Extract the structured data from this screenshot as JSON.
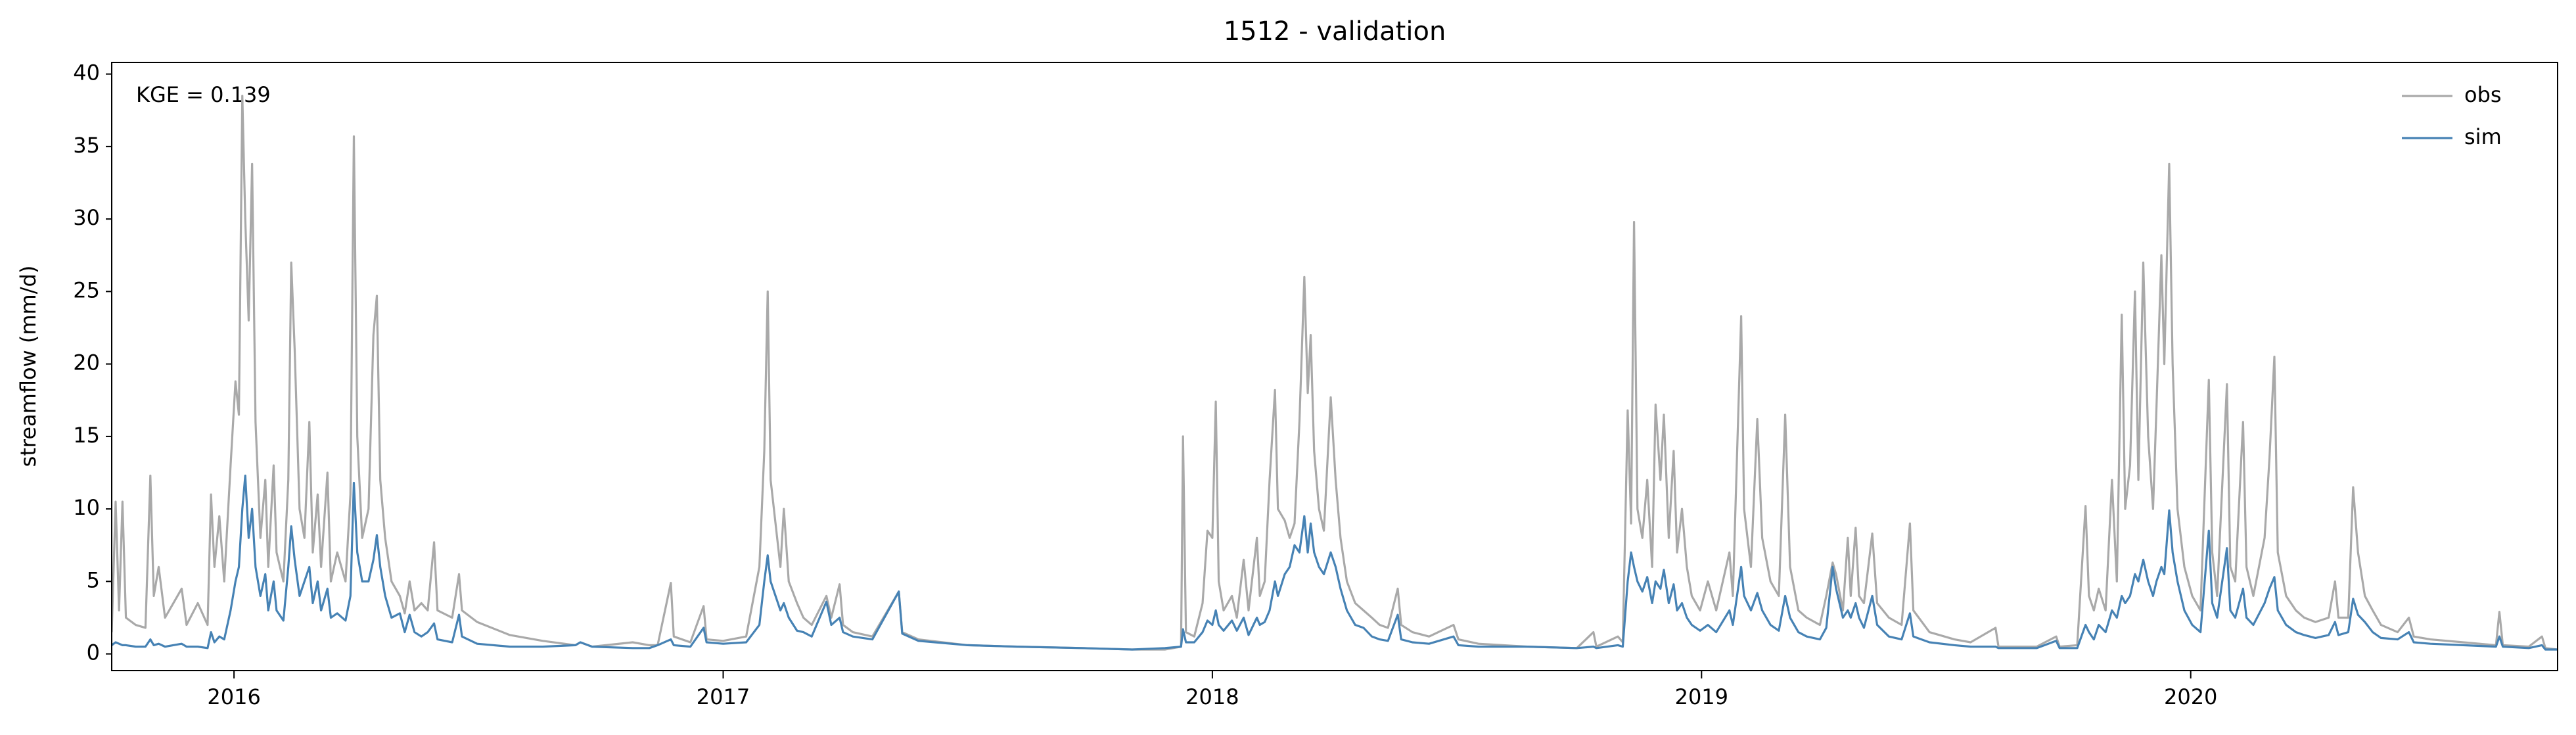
{
  "chart_data": {
    "type": "line",
    "title": "1512 - validation",
    "ylabel": "streamflow (mm/d)",
    "annotation": "KGE = 0.139",
    "legend": "upper right",
    "grid": false,
    "xlim": [
      2015.75,
      2020.75
    ],
    "xticks": [
      2016,
      2017,
      2018,
      2019,
      2020
    ],
    "ylim": [
      -1.15,
      40.8
    ],
    "yticks": [
      0,
      5,
      10,
      15,
      20,
      25,
      30,
      35,
      40
    ],
    "x": [
      2015.75,
      2015.758,
      2015.765,
      2015.772,
      2015.779,
      2015.799,
      2015.819,
      2015.829,
      2015.836,
      2015.846,
      2015.859,
      2015.893,
      2015.903,
      2015.926,
      2015.946,
      2015.953,
      2015.96,
      2015.97,
      2015.98,
      2015.993,
      2016.003,
      2016.01,
      2016.017,
      2016.023,
      2016.03,
      2016.037,
      2016.044,
      2016.054,
      2016.064,
      2016.07,
      2016.081,
      2016.087,
      2016.101,
      2016.111,
      2016.117,
      2016.124,
      2016.134,
      2016.144,
      2016.154,
      2016.161,
      2016.171,
      2016.178,
      2016.191,
      2016.198,
      2016.211,
      2016.228,
      2016.238,
      2016.245,
      2016.252,
      2016.262,
      2016.275,
      2016.285,
      2016.292,
      2016.299,
      2016.309,
      2016.322,
      2016.339,
      2016.349,
      2016.359,
      2016.369,
      2016.383,
      2016.396,
      2016.409,
      2016.416,
      2016.446,
      2016.46,
      2016.466,
      2016.497,
      2016.564,
      2016.631,
      2016.698,
      2016.708,
      2016.732,
      2016.815,
      2016.849,
      2016.866,
      2016.893,
      2016.899,
      2016.933,
      2016.96,
      2016.966,
      2017,
      2017.047,
      2017.074,
      2017.084,
      2017.091,
      2017.097,
      2017.107,
      2017.117,
      2017.124,
      2017.134,
      2017.151,
      2017.164,
      2017.181,
      2017.211,
      2017.221,
      2017.238,
      2017.245,
      2017.265,
      2017.305,
      2017.359,
      2017.366,
      2017.399,
      2017.5,
      2017.601,
      2017.735,
      2017.836,
      2017.903,
      2017.936,
      2017.94,
      2017.946,
      2017.963,
      2017.98,
      2017.99,
      2018,
      2018.007,
      2018.013,
      2018.023,
      2018.04,
      2018.05,
      2018.064,
      2018.074,
      2018.091,
      2018.097,
      2018.107,
      2018.117,
      2018.128,
      2018.134,
      2018.148,
      2018.158,
      2018.168,
      2018.178,
      2018.188,
      2018.195,
      2018.201,
      2018.208,
      2018.218,
      2018.228,
      2018.242,
      2018.252,
      2018.262,
      2018.275,
      2018.292,
      2018.309,
      2018.326,
      2018.342,
      2018.359,
      2018.379,
      2018.386,
      2018.409,
      2018.443,
      2018.493,
      2018.503,
      2018.544,
      2018.644,
      2018.745,
      2018.779,
      2018.785,
      2018.829,
      2018.839,
      2018.849,
      2018.856,
      2018.862,
      2018.869,
      2018.879,
      2018.889,
      2018.899,
      2018.906,
      2018.916,
      2018.923,
      2018.933,
      2018.943,
      2018.95,
      2018.96,
      2018.97,
      2018.98,
      2018.997,
      2019.013,
      2019.03,
      2019.057,
      2019.064,
      2019.081,
      2019.087,
      2019.101,
      2019.114,
      2019.124,
      2019.141,
      2019.158,
      2019.171,
      2019.181,
      2019.198,
      2019.215,
      2019.242,
      2019.255,
      2019.268,
      2019.275,
      2019.289,
      2019.299,
      2019.305,
      2019.315,
      2019.322,
      2019.332,
      2019.349,
      2019.359,
      2019.383,
      2019.409,
      2019.426,
      2019.433,
      2019.466,
      2019.517,
      2019.55,
      2019.601,
      2019.607,
      2019.685,
      2019.725,
      2019.732,
      2019.768,
      2019.785,
      2019.792,
      2019.802,
      2019.812,
      2019.826,
      2019.839,
      2019.849,
      2019.859,
      2019.866,
      2019.876,
      2019.886,
      2019.893,
      2019.903,
      2019.913,
      2019.923,
      2019.93,
      2019.94,
      2019.946,
      2019.956,
      2019.963,
      2019.973,
      2019.987,
      2020.003,
      2020.02,
      2020.037,
      2020.044,
      2020.054,
      2020.074,
      2020.081,
      2020.091,
      2020.107,
      2020.114,
      2020.128,
      2020.151,
      2020.161,
      2020.171,
      2020.178,
      2020.195,
      2020.215,
      2020.232,
      2020.255,
      2020.282,
      2020.295,
      2020.302,
      2020.322,
      2020.332,
      2020.342,
      2020.356,
      2020.372,
      2020.389,
      2020.423,
      2020.446,
      2020.456,
      2020.49,
      2020.557,
      2020.624,
      2020.631,
      2020.638,
      2020.691,
      2020.718,
      2020.725,
      2020.75
    ],
    "series": [
      {
        "name": "obs",
        "color": "#a9a9a9",
        "values": [
          1.5,
          10.5,
          3,
          10.5,
          2.5,
          2,
          1.8,
          12.3,
          4,
          6,
          2.5,
          4.5,
          2,
          3.5,
          2,
          11,
          6,
          9.5,
          5,
          13,
          18.8,
          16.5,
          38.5,
          30,
          23,
          33.8,
          16,
          8,
          12,
          6,
          13,
          7,
          5,
          12,
          27,
          21,
          10,
          8,
          16,
          7,
          11,
          6,
          12.5,
          5,
          7,
          5,
          11,
          35.7,
          15,
          8,
          10,
          22,
          24.7,
          12,
          8,
          5,
          4,
          2.8,
          5,
          3,
          3.5,
          3,
          7.7,
          3,
          2.5,
          5.5,
          3,
          2.2,
          1.3,
          0.9,
          0.6,
          0.8,
          0.5,
          0.8,
          0.6,
          0.6,
          4.9,
          1.2,
          0.8,
          3.3,
          1.0,
          0.9,
          1.2,
          6,
          14,
          25,
          12,
          9,
          6,
          10,
          5,
          3.5,
          2.5,
          2,
          4,
          2.5,
          4.8,
          2,
          1.5,
          1.2,
          4.3,
          1.5,
          1.0,
          0.6,
          0.5,
          0.4,
          0.3,
          0.3,
          0.5,
          15,
          1.5,
          1.2,
          3.5,
          8.5,
          8,
          17.4,
          5,
          3,
          4,
          2.5,
          6.5,
          3,
          8,
          4,
          5,
          12,
          18.2,
          10,
          9.2,
          8,
          9,
          16,
          26,
          18,
          22,
          14,
          10,
          8.5,
          17.7,
          12,
          8,
          5,
          3.5,
          3,
          2.5,
          2,
          1.8,
          4.5,
          2,
          1.5,
          1.2,
          2,
          1,
          0.7,
          0.5,
          0.4,
          1.5,
          0.5,
          1.2,
          0.8,
          16.8,
          9,
          29.8,
          10,
          8,
          12,
          6,
          17.2,
          12,
          16.5,
          8,
          14,
          7,
          10,
          6,
          4,
          3,
          5,
          3,
          7,
          4,
          23.3,
          10,
          6,
          16.2,
          8,
          5,
          4,
          16.5,
          6,
          3,
          2.5,
          2,
          4,
          6.3,
          5.5,
          3,
          8,
          4,
          8.7,
          4,
          3.5,
          8.3,
          3.5,
          2.5,
          2,
          9,
          3,
          1.5,
          1.0,
          0.8,
          1.8,
          0.5,
          0.5,
          1.2,
          0.5,
          0.6,
          10.2,
          4,
          3,
          4.5,
          3,
          12,
          5,
          23.4,
          10,
          13,
          25,
          12,
          27,
          15,
          10,
          17,
          27.5,
          20,
          33.8,
          20,
          10,
          6,
          4,
          3,
          18.9,
          7,
          4,
          18.6,
          6,
          5,
          16,
          6,
          4,
          8,
          13.5,
          20.5,
          7,
          4,
          3,
          2.5,
          2.2,
          2.5,
          5,
          2.5,
          2.5,
          11.5,
          7,
          4,
          3,
          2,
          1.5,
          2.5,
          1.2,
          1,
          0.8,
          0.6,
          2.9,
          0.6,
          0.5,
          1.2,
          0.4,
          0.3
        ]
      },
      {
        "name": "sim",
        "color": "#4682b4",
        "values": [
          0.6,
          0.8,
          0.7,
          0.6,
          0.6,
          0.5,
          0.5,
          1.0,
          0.6,
          0.7,
          0.5,
          0.7,
          0.5,
          0.5,
          0.4,
          1.5,
          0.8,
          1.2,
          1.0,
          3,
          5,
          6,
          10,
          12.3,
          8,
          10,
          6,
          4,
          5.5,
          3,
          5,
          3,
          2.3,
          6,
          8.8,
          6.5,
          4,
          5,
          6,
          3.5,
          5,
          3,
          4.5,
          2.5,
          2.8,
          2.3,
          4,
          11.8,
          7,
          5,
          5,
          6.5,
          8.2,
          6,
          4,
          2.5,
          2.8,
          1.5,
          2.7,
          1.5,
          1.2,
          1.5,
          2.1,
          1.0,
          0.8,
          2.7,
          1.2,
          0.7,
          0.5,
          0.5,
          0.6,
          0.8,
          0.5,
          0.4,
          0.4,
          0.6,
          1,
          0.6,
          0.5,
          1.8,
          0.8,
          0.7,
          0.8,
          2,
          5,
          6.8,
          5,
          4,
          3,
          3.5,
          2.5,
          1.6,
          1.5,
          1.2,
          3.6,
          2,
          2.5,
          1.5,
          1.2,
          1.0,
          4.3,
          1.4,
          0.9,
          0.6,
          0.5,
          0.4,
          0.3,
          0.4,
          0.5,
          1.7,
          0.8,
          0.8,
          1.5,
          2.3,
          2,
          3,
          2,
          1.6,
          2.3,
          1.6,
          2.5,
          1.3,
          2.5,
          2,
          2.2,
          3,
          5,
          4,
          5.5,
          6,
          7.5,
          7,
          9.5,
          7,
          9,
          7,
          6,
          5.5,
          7,
          6,
          4.5,
          3,
          2,
          1.8,
          1.2,
          1,
          0.9,
          2.7,
          1,
          0.8,
          0.7,
          1.2,
          0.6,
          0.5,
          0.5,
          0.4,
          0.5,
          0.4,
          0.6,
          0.5,
          5,
          7,
          6,
          5,
          4.3,
          5.3,
          3.5,
          5,
          4.5,
          5.8,
          3.5,
          4.8,
          3,
          3.5,
          2.5,
          2,
          1.6,
          2,
          1.5,
          3,
          2,
          6,
          4,
          3,
          4.2,
          3,
          2,
          1.6,
          4,
          2.5,
          1.5,
          1.2,
          1.0,
          1.8,
          6,
          4.5,
          2.5,
          3,
          2.5,
          3.5,
          2.5,
          1.8,
          4,
          2,
          1.2,
          1,
          2.8,
          1.2,
          0.8,
          0.6,
          0.5,
          0.5,
          0.4,
          0.4,
          0.9,
          0.4,
          0.4,
          2,
          1.5,
          1,
          2,
          1.5,
          3,
          2.5,
          4,
          3.5,
          4,
          5.5,
          5,
          6.5,
          5,
          4,
          5,
          6,
          5.5,
          9.9,
          7,
          5,
          3,
          2,
          1.5,
          8.5,
          3.5,
          2.5,
          7.3,
          3,
          2.5,
          4.5,
          2.5,
          2,
          3.5,
          4.5,
          5.3,
          3,
          2,
          1.5,
          1.3,
          1.1,
          1.3,
          2.2,
          1.3,
          1.5,
          3.8,
          2.7,
          2.2,
          1.5,
          1.1,
          1,
          1.5,
          0.8,
          0.7,
          0.6,
          0.5,
          1.2,
          0.5,
          0.4,
          0.6,
          0.3,
          0.3
        ]
      }
    ]
  }
}
